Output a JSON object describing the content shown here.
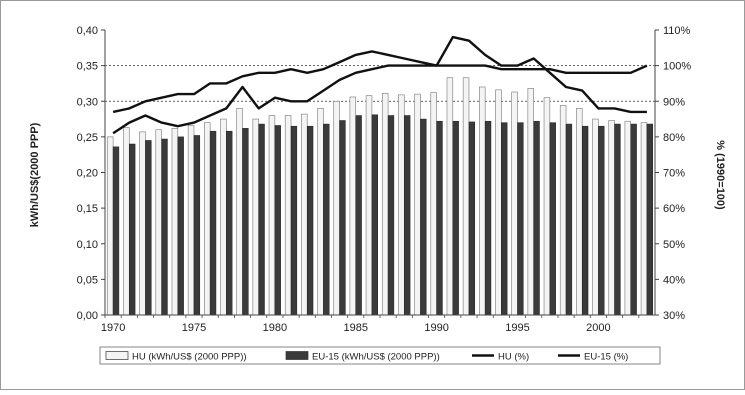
{
  "chart_data": {
    "type": "bar",
    "title": "",
    "ylabel": "kWh/US$(2000 PPP)",
    "y2label": "% (1990=100)",
    "xlabel": "",
    "ylim": [
      0,
      0.4
    ],
    "y2lim": [
      30,
      110
    ],
    "yticks": [
      "0,00",
      "0,05",
      "0,10",
      "0,15",
      "0,20",
      "0,25",
      "0,30",
      "0,35",
      "0,40"
    ],
    "y2ticks": [
      "30%",
      "40%",
      "50%",
      "60%",
      "70%",
      "80%",
      "90%",
      "100%",
      "110%"
    ],
    "xtick_labels": [
      "1970",
      "1975",
      "1980",
      "1985",
      "1990",
      "1995",
      "2000"
    ],
    "grid": "dashed at 0,30 and 0,35",
    "legend_position": "bottom",
    "x": [
      1970,
      1971,
      1972,
      1973,
      1974,
      1975,
      1976,
      1977,
      1978,
      1979,
      1980,
      1981,
      1982,
      1983,
      1984,
      1985,
      1986,
      1987,
      1988,
      1989,
      1990,
      1991,
      1992,
      1993,
      1994,
      1995,
      1996,
      1997,
      1998,
      1999,
      2000,
      2001,
      2002,
      2003
    ],
    "series": [
      {
        "name": "HU (kWh/US$ (2000 PPP))",
        "kind": "bar",
        "axis": "left",
        "color": "#f4f4f4",
        "values": [
          0.25,
          0.263,
          0.257,
          0.26,
          0.262,
          0.266,
          0.27,
          0.275,
          0.29,
          0.275,
          0.28,
          0.28,
          0.282,
          0.29,
          0.3,
          0.306,
          0.308,
          0.311,
          0.309,
          0.31,
          0.312,
          0.333,
          0.333,
          0.32,
          0.316,
          0.313,
          0.318,
          0.305,
          0.294,
          0.29,
          0.275,
          0.273,
          0.272,
          0.27
        ]
      },
      {
        "name": "EU-15 (kWh/US$ (2000 PPP))",
        "kind": "bar",
        "axis": "left",
        "color": "#3a3a3a",
        "values": [
          0.236,
          0.24,
          0.245,
          0.247,
          0.25,
          0.252,
          0.258,
          0.258,
          0.262,
          0.268,
          0.266,
          0.265,
          0.265,
          0.268,
          0.273,
          0.28,
          0.281,
          0.28,
          0.28,
          0.275,
          0.272,
          0.272,
          0.271,
          0.272,
          0.27,
          0.27,
          0.272,
          0.27,
          0.268,
          0.265,
          0.265,
          0.268,
          0.268,
          0.268
        ]
      },
      {
        "name": "HU (%)",
        "kind": "line",
        "axis": "right",
        "color": "#111111",
        "values": [
          81,
          84,
          86,
          84,
          83,
          84,
          86,
          88,
          94,
          88,
          91,
          90,
          90,
          93,
          96,
          98,
          99,
          100,
          100,
          100,
          100,
          108,
          107,
          103,
          100,
          100,
          102,
          98,
          94,
          93,
          88,
          88,
          87,
          87
        ]
      },
      {
        "name": "EU-15 (%)",
        "kind": "line",
        "axis": "right",
        "color": "#111111",
        "values": [
          87,
          88,
          90,
          91,
          92,
          92,
          95,
          95,
          97,
          98,
          98,
          99,
          98,
          99,
          101,
          103,
          104,
          103,
          102,
          101,
          100,
          100,
          100,
          100,
          99,
          99,
          99,
          99,
          98,
          98,
          98,
          98,
          98,
          100
        ]
      }
    ]
  }
}
